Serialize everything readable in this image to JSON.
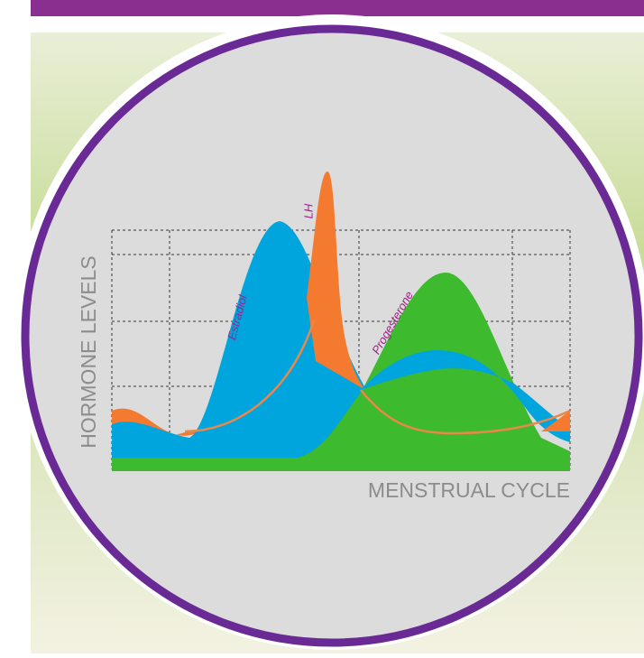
{
  "axes": {
    "y_label": "HORMONE LEVELS",
    "x_label": "MENSTRUAL CYCLE"
  },
  "curves": [
    {
      "label": "Estradiol"
    },
    {
      "label": "LH"
    },
    {
      "label": "Progesterone"
    }
  ]
}
